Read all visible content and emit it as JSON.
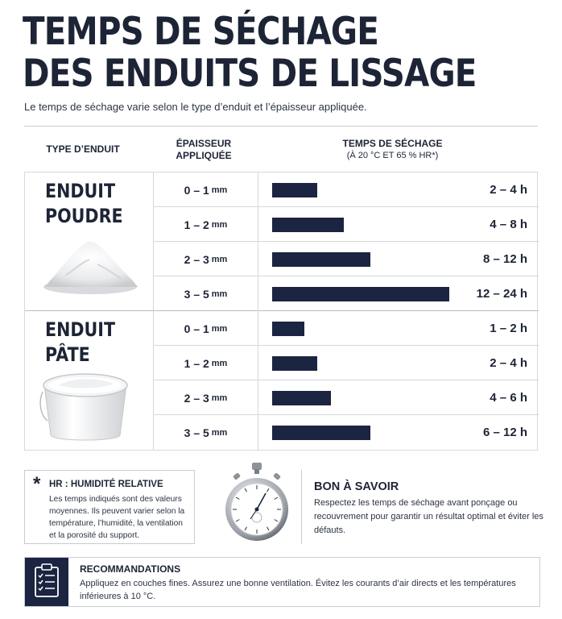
{
  "header": {
    "title_line1": "TEMPS DE SÉCHAGE",
    "title_line2": "DES ENDUITS DE LISSAGE",
    "subtitle": "Le temps de séchage varie selon le type d’enduit et l’épaisseur appliquée."
  },
  "table": {
    "col_type": "TYPE D’ENDUIT",
    "col_thickness_line1": "ÉPAISSEUR",
    "col_thickness_line2": "APPLIQUÉE",
    "col_time": "TEMPS DE SÉCHAGE",
    "col_time_sub": "(À 20 °C ET 65 % HR*)",
    "unit": "mm",
    "groups": [
      {
        "name_line1": "ENDUIT",
        "name_line2": "POUDRE",
        "rows": [
          {
            "thickness": "0 – 1",
            "time": "2 – 4 h",
            "max_hours": 4
          },
          {
            "thickness": "1 – 2",
            "time": "4 – 8 h",
            "max_hours": 8
          },
          {
            "thickness": "2 – 3",
            "time": "8 – 12 h",
            "max_hours": 12
          },
          {
            "thickness": "3 – 5",
            "time": "12 – 24 h",
            "max_hours": 24
          }
        ]
      },
      {
        "name_line1": "ENDUIT",
        "name_line2": "PÂTE",
        "rows": [
          {
            "thickness": "0 – 1",
            "time": "1 – 2 h",
            "max_hours": 2
          },
          {
            "thickness": "1 – 2",
            "time": "2 – 4 h",
            "max_hours": 4
          },
          {
            "thickness": "2 – 3",
            "time": "4 – 6 h",
            "max_hours": 6
          },
          {
            "thickness": "3 – 5",
            "time": "6 – 12 h",
            "max_hours": 12
          }
        ]
      }
    ]
  },
  "note": {
    "star": "*",
    "title": "HR : HUMIDITÉ RELATIVE",
    "text": "Les temps indiqués sont des valeurs moyennes. Ils peuvent varier selon la température, l’humidité, la ventilation et la porosité du support."
  },
  "tip": {
    "icon": "stopwatch-icon",
    "title": "BON À SAVOIR",
    "text": "Respectez les temps de séchage avant ponçage ou recouvrement pour garantir un résultat optimal et éviter les défauts."
  },
  "recommendations": {
    "icon": "clipboard-checklist-icon",
    "title": "RECOMMANDATIONS",
    "text": "Appliquez en couches fines. Assurez une bonne ventilation. Évitez les courants d’air directs et les températures inférieures à 10 °C."
  },
  "colors": {
    "navy": "#1b2440",
    "text": "#1d2436",
    "border": "#d5d8dd"
  }
}
